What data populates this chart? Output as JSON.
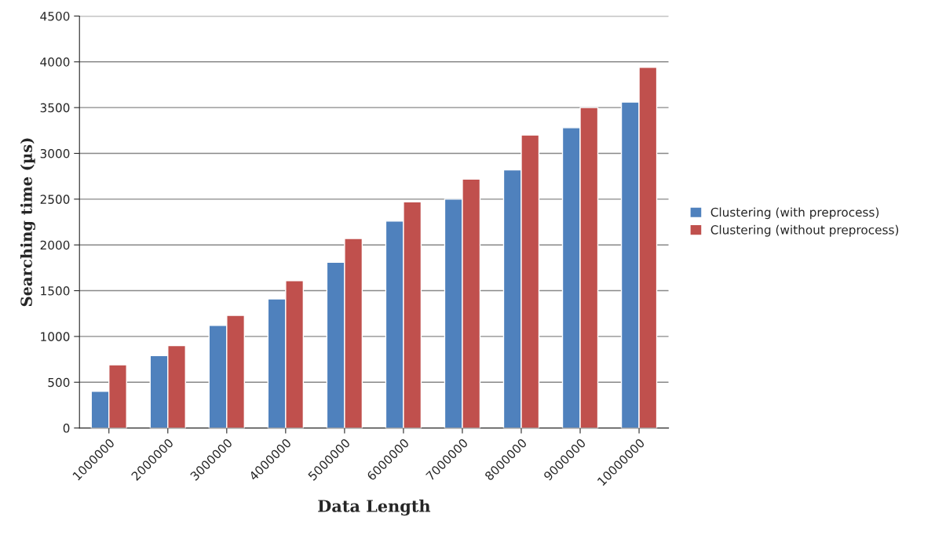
{
  "chart_data": {
    "type": "bar",
    "xlabel": "Data Length",
    "ylabel": "Searching time (µs)",
    "categories": [
      "1000000",
      "2000000",
      "3000000",
      "4000000",
      "5000000",
      "6000000",
      "7000000",
      "8000000",
      "9000000",
      "10000000"
    ],
    "series": [
      {
        "name": "Clustering (with preprocess)",
        "color": "#4f81bd",
        "values": [
          400,
          790,
          1120,
          1410,
          1810,
          2260,
          2500,
          2820,
          3280,
          3560
        ]
      },
      {
        "name": "Clustering (without preprocess)",
        "color": "#c0504d",
        "values": [
          690,
          900,
          1230,
          1610,
          2070,
          2470,
          2720,
          3200,
          3500,
          3940
        ]
      }
    ],
    "ylim": [
      0,
      4500
    ],
    "yticks": [
      0,
      500,
      1000,
      1500,
      2000,
      2500,
      3000,
      3500,
      4000,
      4500
    ],
    "grid": "y",
    "legend": "right"
  }
}
